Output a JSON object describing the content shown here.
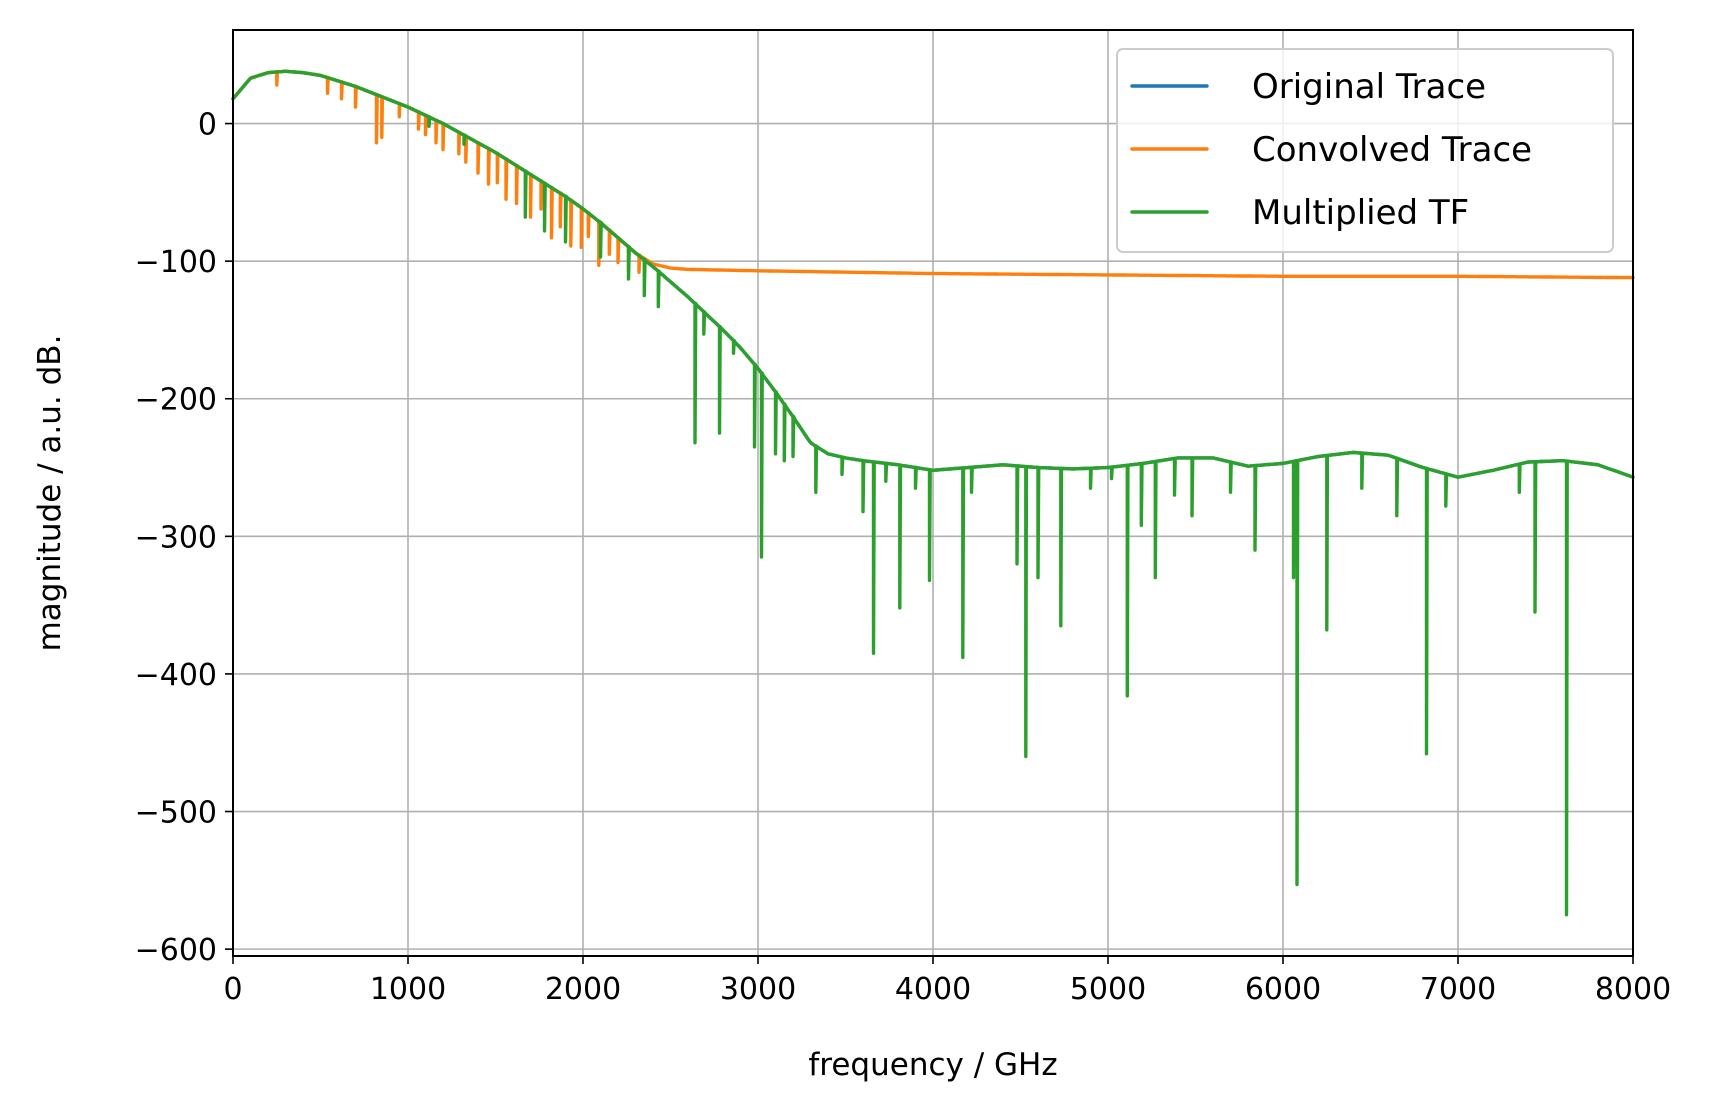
{
  "chart_data": {
    "type": "line",
    "title": "",
    "xlabel": "frequency / GHz",
    "ylabel": "magnitude / a.u. dB.",
    "xlim": [
      0,
      8000
    ],
    "ylim": [
      -605,
      68
    ],
    "grid": true,
    "legend_position": "top-right",
    "x_ticks": [
      0,
      1000,
      2000,
      3000,
      4000,
      5000,
      6000,
      7000,
      8000
    ],
    "x_tick_labels": [
      "0",
      "1000",
      "2000",
      "3000",
      "4000",
      "5000",
      "6000",
      "7000",
      "8000"
    ],
    "y_ticks": [
      0,
      -100,
      -200,
      -300,
      -400,
      -500,
      -600
    ],
    "y_tick_labels": [
      "0",
      "−100",
      "−200",
      "−300",
      "−400",
      "−500",
      "−600"
    ],
    "series": [
      {
        "name": "Original Trace",
        "color": "#1f77b4",
        "envelope": [
          [
            0,
            18
          ],
          [
            100,
            33
          ],
          [
            200,
            37
          ],
          [
            300,
            38
          ],
          [
            400,
            37
          ],
          [
            500,
            35
          ],
          [
            600,
            31
          ],
          [
            700,
            27
          ],
          [
            800,
            22
          ],
          [
            900,
            17
          ],
          [
            1000,
            12
          ],
          [
            1100,
            6
          ],
          [
            1200,
            0
          ],
          [
            1300,
            -7
          ],
          [
            1400,
            -14
          ],
          [
            1500,
            -21
          ],
          [
            1600,
            -29
          ],
          [
            1700,
            -37
          ],
          [
            1800,
            -45
          ],
          [
            1900,
            -53
          ],
          [
            2000,
            -62
          ],
          [
            2100,
            -72
          ],
          [
            2200,
            -83
          ],
          [
            2300,
            -94
          ],
          [
            2400,
            -104
          ],
          [
            2500,
            -115
          ],
          [
            2600,
            -126
          ],
          [
            2700,
            -138
          ],
          [
            2800,
            -150
          ],
          [
            2900,
            -163
          ],
          [
            3000,
            -178
          ],
          [
            3100,
            -195
          ],
          [
            3200,
            -213
          ],
          [
            3300,
            -232
          ],
          [
            3400,
            -240
          ],
          [
            3500,
            -243
          ],
          [
            3600,
            -245
          ],
          [
            3800,
            -248
          ],
          [
            4000,
            -252
          ],
          [
            4200,
            -250
          ],
          [
            4400,
            -248
          ],
          [
            4600,
            -250
          ],
          [
            4800,
            -251
          ],
          [
            5000,
            -250
          ],
          [
            5200,
            -247
          ],
          [
            5400,
            -243
          ],
          [
            5600,
            -243
          ],
          [
            5800,
            -249
          ],
          [
            6000,
            -247
          ],
          [
            6200,
            -242
          ],
          [
            6400,
            -239
          ],
          [
            6600,
            -241
          ],
          [
            6800,
            -250
          ],
          [
            7000,
            -257
          ],
          [
            7200,
            -252
          ],
          [
            7400,
            -246
          ],
          [
            7600,
            -245
          ],
          [
            7800,
            -248
          ],
          [
            8000,
            -257
          ]
        ]
      },
      {
        "name": "Convolved Trace",
        "color": "#ff7f0e",
        "envelope": [
          [
            0,
            18
          ],
          [
            100,
            33
          ],
          [
            200,
            37
          ],
          [
            300,
            38
          ],
          [
            400,
            37
          ],
          [
            500,
            35
          ],
          [
            600,
            31
          ],
          [
            700,
            27
          ],
          [
            800,
            22
          ],
          [
            900,
            17
          ],
          [
            1000,
            12
          ],
          [
            1100,
            6
          ],
          [
            1200,
            0
          ],
          [
            1300,
            -7
          ],
          [
            1400,
            -14
          ],
          [
            1500,
            -21
          ],
          [
            1600,
            -29
          ],
          [
            1700,
            -37
          ],
          [
            1800,
            -45
          ],
          [
            1900,
            -53
          ],
          [
            2000,
            -62
          ],
          [
            2100,
            -72
          ],
          [
            2200,
            -83
          ],
          [
            2300,
            -94
          ],
          [
            2400,
            -102
          ],
          [
            2500,
            -105
          ],
          [
            2600,
            -106
          ],
          [
            3000,
            -107
          ],
          [
            4000,
            -109
          ],
          [
            5000,
            -110
          ],
          [
            6000,
            -111
          ],
          [
            7000,
            -111
          ],
          [
            8000,
            -112
          ]
        ],
        "dips": [
          [
            250,
            28
          ],
          [
            540,
            22
          ],
          [
            620,
            18
          ],
          [
            700,
            12
          ],
          [
            820,
            -14
          ],
          [
            850,
            -10
          ],
          [
            950,
            5
          ],
          [
            1060,
            -4
          ],
          [
            1100,
            -8
          ],
          [
            1160,
            -14
          ],
          [
            1200,
            -19
          ],
          [
            1290,
            -22
          ],
          [
            1330,
            -28
          ],
          [
            1400,
            -36
          ],
          [
            1460,
            -44
          ],
          [
            1510,
            -43
          ],
          [
            1560,
            -55
          ],
          [
            1620,
            -58
          ],
          [
            1700,
            -68
          ],
          [
            1760,
            -62
          ],
          [
            1820,
            -83
          ],
          [
            1870,
            -75
          ],
          [
            1930,
            -89
          ],
          [
            1990,
            -90
          ],
          [
            2030,
            -82
          ],
          [
            2090,
            -103
          ],
          [
            2150,
            -95
          ],
          [
            2200,
            -101
          ],
          [
            2260,
            -107
          ],
          [
            2320,
            -108
          ]
        ]
      },
      {
        "name": "Multiplied TF",
        "color": "#2ca02c",
        "envelope": [
          [
            0,
            18
          ],
          [
            100,
            33
          ],
          [
            200,
            37
          ],
          [
            300,
            38
          ],
          [
            400,
            37
          ],
          [
            500,
            35
          ],
          [
            600,
            31
          ],
          [
            700,
            27
          ],
          [
            800,
            22
          ],
          [
            900,
            17
          ],
          [
            1000,
            12
          ],
          [
            1100,
            6
          ],
          [
            1200,
            0
          ],
          [
            1300,
            -7
          ],
          [
            1400,
            -14
          ],
          [
            1500,
            -21
          ],
          [
            1600,
            -29
          ],
          [
            1700,
            -37
          ],
          [
            1800,
            -45
          ],
          [
            1900,
            -53
          ],
          [
            2000,
            -62
          ],
          [
            2100,
            -72
          ],
          [
            2200,
            -83
          ],
          [
            2300,
            -94
          ],
          [
            2400,
            -104
          ],
          [
            2500,
            -115
          ],
          [
            2600,
            -126
          ],
          [
            2700,
            -138
          ],
          [
            2800,
            -150
          ],
          [
            2900,
            -163
          ],
          [
            3000,
            -178
          ],
          [
            3100,
            -195
          ],
          [
            3200,
            -213
          ],
          [
            3300,
            -232
          ],
          [
            3400,
            -240
          ],
          [
            3500,
            -243
          ],
          [
            3600,
            -245
          ],
          [
            3800,
            -248
          ],
          [
            4000,
            -252
          ],
          [
            4200,
            -250
          ],
          [
            4400,
            -248
          ],
          [
            4600,
            -250
          ],
          [
            4800,
            -251
          ],
          [
            5000,
            -250
          ],
          [
            5200,
            -247
          ],
          [
            5400,
            -243
          ],
          [
            5600,
            -243
          ],
          [
            5800,
            -249
          ],
          [
            6000,
            -247
          ],
          [
            6200,
            -242
          ],
          [
            6400,
            -239
          ],
          [
            6600,
            -241
          ],
          [
            6800,
            -250
          ],
          [
            7000,
            -257
          ],
          [
            7200,
            -252
          ],
          [
            7400,
            -246
          ],
          [
            7600,
            -245
          ],
          [
            7800,
            -248
          ],
          [
            8000,
            -257
          ]
        ],
        "dips": [
          [
            1120,
            -2
          ],
          [
            1320,
            -15
          ],
          [
            1670,
            -68
          ],
          [
            1780,
            -78
          ],
          [
            1900,
            -86
          ],
          [
            2100,
            -97
          ],
          [
            2260,
            -113
          ],
          [
            2350,
            -125
          ],
          [
            2430,
            -133
          ],
          [
            2640,
            -232
          ],
          [
            2690,
            -153
          ],
          [
            2780,
            -225
          ],
          [
            2860,
            -167
          ],
          [
            2980,
            -235
          ],
          [
            3020,
            -315
          ],
          [
            3100,
            -240
          ],
          [
            3150,
            -245
          ],
          [
            3200,
            -242
          ],
          [
            3330,
            -268
          ],
          [
            3480,
            -255
          ],
          [
            3600,
            -282
          ],
          [
            3660,
            -385
          ],
          [
            3730,
            -260
          ],
          [
            3810,
            -352
          ],
          [
            3900,
            -265
          ],
          [
            3980,
            -332
          ],
          [
            4170,
            -388
          ],
          [
            4220,
            -268
          ],
          [
            4480,
            -320
          ],
          [
            4530,
            -460
          ],
          [
            4600,
            -330
          ],
          [
            4730,
            -365
          ],
          [
            4900,
            -265
          ],
          [
            5020,
            -258
          ],
          [
            5110,
            -416
          ],
          [
            5190,
            -292
          ],
          [
            5270,
            -330
          ],
          [
            5380,
            -270
          ],
          [
            5480,
            -285
          ],
          [
            5700,
            -268
          ],
          [
            5840,
            -310
          ],
          [
            6060,
            -330
          ],
          [
            6080,
            -553
          ],
          [
            6250,
            -368
          ],
          [
            6450,
            -265
          ],
          [
            6650,
            -285
          ],
          [
            6820,
            -458
          ],
          [
            6930,
            -278
          ],
          [
            7350,
            -268
          ],
          [
            7440,
            -355
          ],
          [
            7620,
            -575
          ]
        ]
      }
    ]
  }
}
